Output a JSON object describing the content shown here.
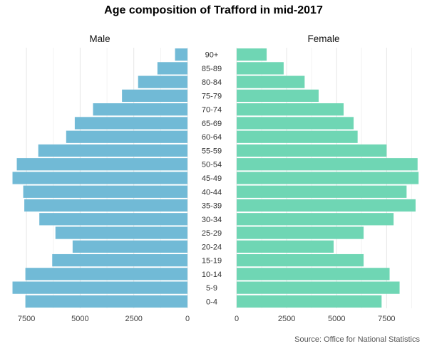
{
  "chart_data": {
    "type": "bar",
    "orientation": "horizontal",
    "chart_style": "population-pyramid",
    "title": "Age composition of Trafford in mid-2017",
    "source": "Source: Office for National Statistics",
    "categories": [
      "0-4",
      "5-9",
      "10-14",
      "15-19",
      "20-24",
      "25-29",
      "30-34",
      "35-39",
      "40-44",
      "45-49",
      "50-54",
      "55-59",
      "60-64",
      "65-69",
      "70-74",
      "75-79",
      "80-84",
      "85-89",
      "90+"
    ],
    "series": [
      {
        "name": "Male",
        "color": "#71BAD6",
        "values": [
          7550,
          8150,
          7550,
          6300,
          5350,
          6150,
          6900,
          7600,
          7650,
          8150,
          7950,
          6950,
          5650,
          5250,
          4400,
          3050,
          2300,
          1400,
          580
        ]
      },
      {
        "name": "Female",
        "color": "#6FD6B4",
        "values": [
          7250,
          8150,
          7650,
          6350,
          4850,
          6350,
          7850,
          8950,
          8500,
          9100,
          9050,
          7500,
          6050,
          5850,
          5350,
          4100,
          3400,
          2350,
          1500
        ]
      }
    ],
    "xlim_male": [
      0,
      8400
    ],
    "xlim_female": [
      0,
      9200
    ],
    "xticks": [
      0,
      2500,
      5000,
      7500
    ],
    "xtick_labels": [
      "0",
      "2500",
      "5000",
      "7500"
    ],
    "grid": true
  }
}
